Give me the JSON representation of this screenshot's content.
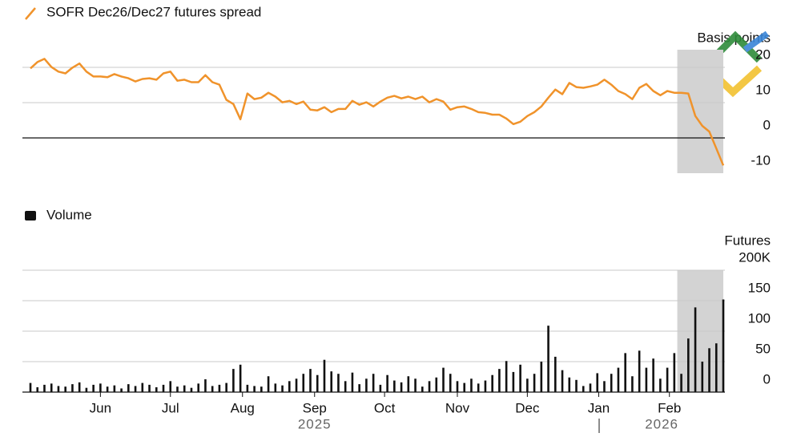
{
  "chart_data": [
    {
      "type": "line",
      "series": [
        {
          "name": "SOFR Dec26/Dec27 futures spread",
          "color": "#f0932b",
          "values": [
            19.7,
            21.5,
            22.4,
            20.1,
            18.8,
            18.3,
            19.9,
            21.1,
            18.8,
            17.4,
            17.4,
            17.2,
            18.1,
            17.4,
            16.9,
            16.0,
            16.7,
            16.9,
            16.5,
            18.3,
            18.8,
            16.2,
            16.5,
            15.8,
            15.8,
            17.8,
            15.8,
            15.1,
            10.8,
            9.6,
            5.3,
            12.6,
            11.0,
            11.4,
            12.8,
            11.7,
            10.1,
            10.5,
            9.6,
            10.3,
            8.0,
            7.8,
            8.7,
            7.3,
            8.2,
            8.2,
            10.5,
            9.4,
            10.1,
            8.9,
            10.3,
            11.4,
            11.9,
            11.2,
            11.7,
            11.0,
            11.7,
            10.1,
            11.0,
            10.3,
            8.0,
            8.7,
            8.9,
            8.2,
            7.3,
            7.1,
            6.6,
            6.6,
            5.5,
            3.9,
            4.6,
            6.2,
            7.3,
            8.9,
            11.4,
            13.7,
            12.4,
            15.6,
            14.4,
            14.2,
            14.6,
            15.1,
            16.5,
            15.1,
            13.3,
            12.4,
            11.0,
            14.2,
            15.3,
            13.3,
            12.1,
            13.3,
            12.8,
            12.8,
            12.6,
            6.2,
            3.4,
            1.8,
            -3.0,
            -7.8
          ]
        }
      ],
      "y_label": "Basis points",
      "xlim": [
        0,
        99
      ],
      "ylim": [
        -10,
        25
      ],
      "yticks": [
        -10,
        0,
        10,
        20
      ],
      "grid": true,
      "highlight": [
        93,
        99
      ]
    },
    {
      "type": "bar",
      "series": [
        {
          "name": "Volume",
          "color": "#111111",
          "values": [
            15,
            8,
            12,
            14,
            10,
            9,
            13,
            16,
            7,
            12,
            14,
            9,
            11,
            6,
            13,
            10,
            15,
            12,
            8,
            12,
            18,
            9,
            11,
            7,
            14,
            21,
            10,
            12,
            15,
            38,
            45,
            12,
            10,
            9,
            26,
            14,
            11,
            18,
            22,
            30,
            38,
            28,
            53,
            34,
            30,
            18,
            32,
            13,
            22,
            30,
            12,
            28,
            19,
            16,
            26,
            22,
            9,
            18,
            24,
            40,
            30,
            18,
            15,
            22,
            14,
            19,
            28,
            38,
            51,
            33,
            45,
            22,
            30,
            50,
            109,
            58,
            36,
            24,
            20,
            10,
            14,
            31,
            18,
            30,
            40,
            64,
            26,
            68,
            40,
            55,
            22,
            40,
            64,
            30,
            88,
            139,
            50,
            72,
            80,
            152
          ]
        }
      ],
      "y_label": "Futures",
      "xlim": [
        0,
        99
      ],
      "ylim": [
        0,
        200
      ],
      "yticks": [
        0,
        50,
        100,
        150,
        {
          "value": 200,
          "label": "200K"
        }
      ],
      "xticks": [
        {
          "value": 10,
          "label": "Jun"
        },
        {
          "value": 20,
          "label": "Jul"
        },
        {
          "value": 30.3,
          "label": "Aug"
        },
        {
          "value": 40.6,
          "label": "Sep"
        },
        {
          "value": 50.6,
          "label": "Oct"
        },
        {
          "value": 61,
          "label": "Nov"
        },
        {
          "value": 71,
          "label": "Dec"
        },
        {
          "value": 81.2,
          "label": "Jan"
        },
        {
          "value": 91.3,
          "label": "Feb"
        }
      ],
      "years": [
        {
          "value": 40.6,
          "label": "2025"
        },
        {
          "value": 90.2,
          "label": "2026"
        }
      ],
      "grid": true,
      "highlight": [
        93,
        99
      ]
    }
  ]
}
